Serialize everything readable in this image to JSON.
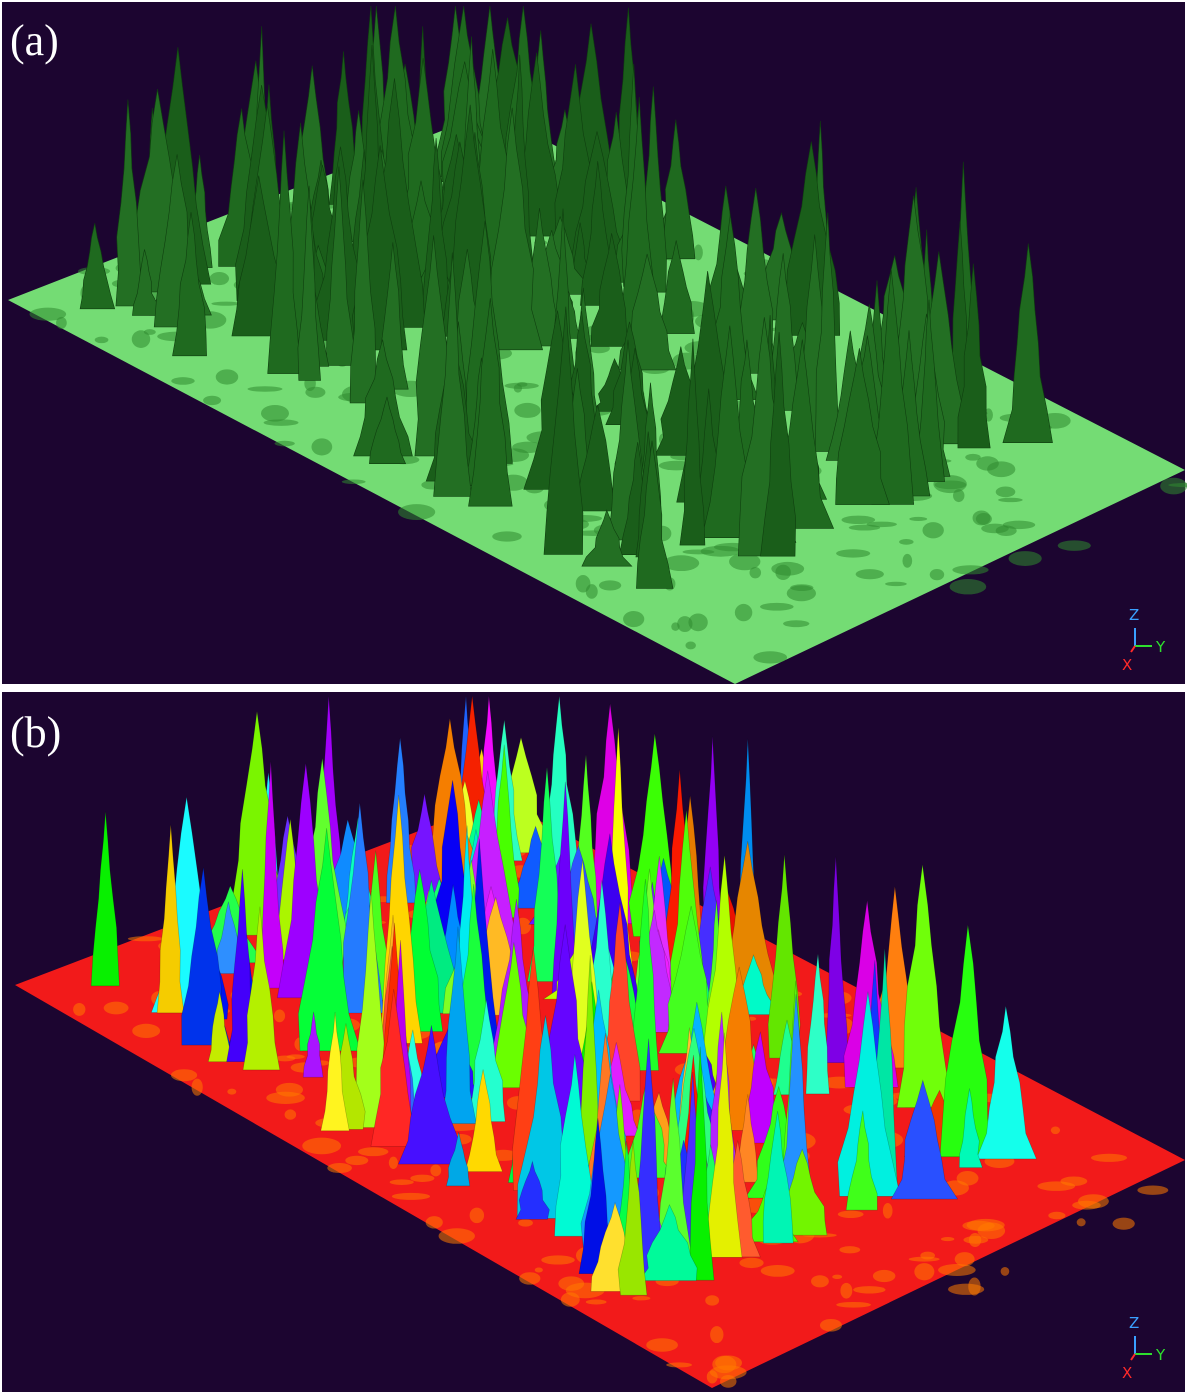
{
  "panels": [
    {
      "label": "(a)",
      "axes": {
        "z": "Z",
        "y": "Y",
        "x": "X"
      }
    },
    {
      "label": "(b)",
      "axes": {
        "z": "Z",
        "y": "Y",
        "x": "X"
      }
    }
  ]
}
